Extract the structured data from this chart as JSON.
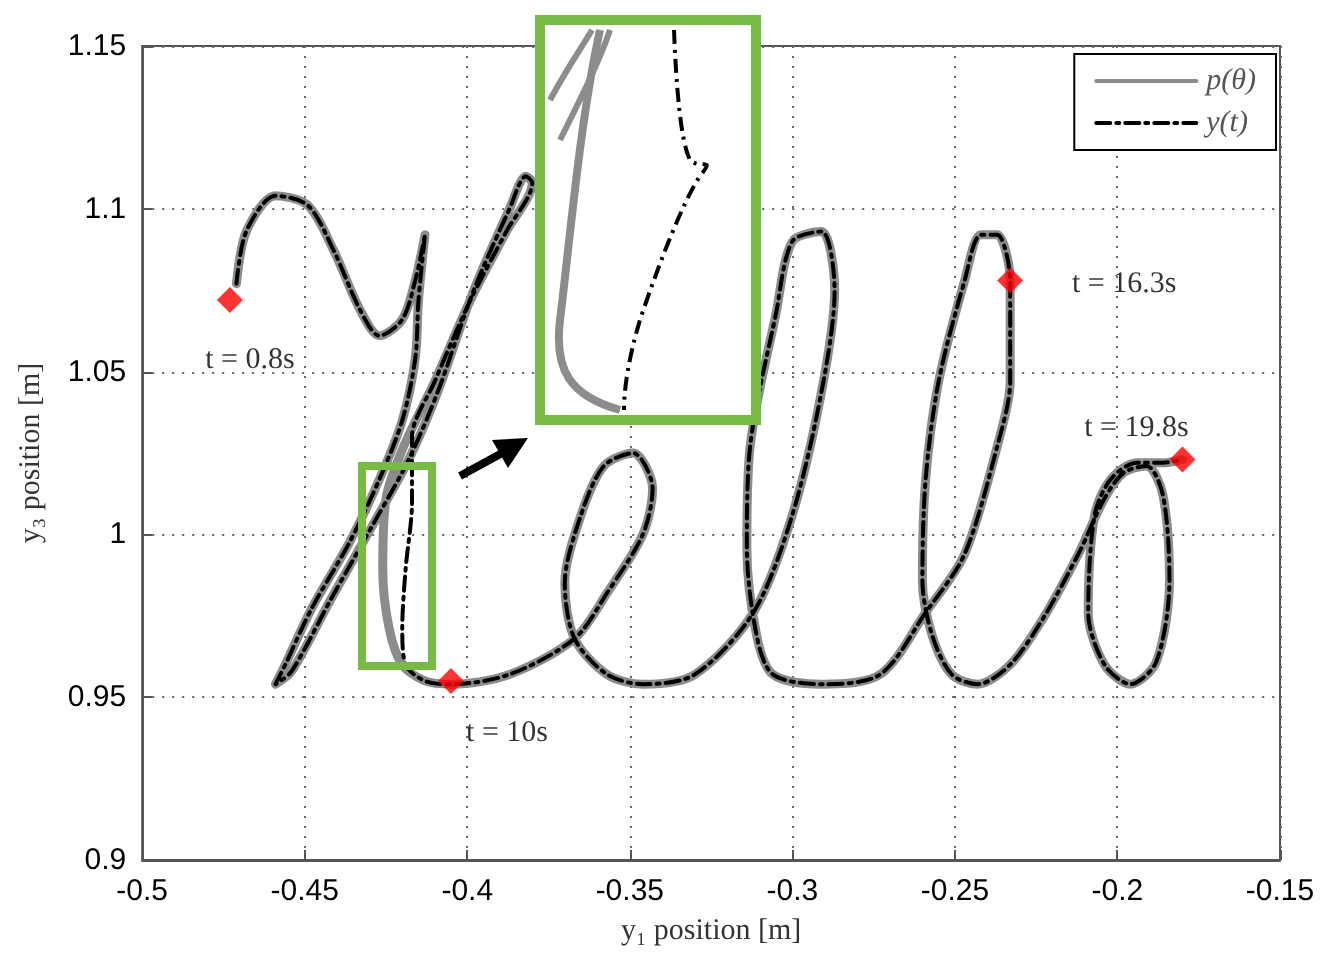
{
  "chart_data": {
    "type": "line",
    "xlabel": "y₁ position [m]",
    "ylabel": "y₃ position [m]",
    "xlim": [
      -0.5,
      -0.15
    ],
    "xticks": [
      -0.5,
      -0.45,
      -0.4,
      -0.35,
      -0.3,
      -0.25,
      -0.2,
      -0.15
    ],
    "ylim": [
      0.9,
      1.15
    ],
    "yticks": [
      0.9,
      0.95,
      1,
      1.05,
      1.1,
      1.15
    ],
    "grid": true,
    "legend": "top right",
    "marker": "none",
    "series": [
      {
        "name": "p(θ)",
        "color": "#8c8c8c",
        "line_style": "solid",
        "x": [
          -0.471,
          -0.468,
          -0.459,
          -0.449,
          -0.441,
          -0.433,
          -0.427,
          -0.42,
          -0.416,
          -0.413,
          -0.415,
          -0.416,
          -0.42,
          -0.427,
          -0.436,
          -0.448,
          -0.456,
          -0.459,
          -0.454,
          -0.442,
          -0.429,
          -0.418,
          -0.409,
          -0.398,
          -0.387,
          -0.382,
          -0.38,
          -0.388,
          -0.399,
          -0.41,
          -0.42,
          -0.425,
          -0.426,
          -0.424,
          -0.42,
          -0.413,
          -0.405,
          -0.387,
          -0.367,
          -0.357,
          -0.346,
          -0.343,
          -0.349,
          -0.358,
          -0.365,
          -0.37,
          -0.367,
          -0.357,
          -0.346,
          -0.33,
          -0.312,
          -0.3,
          -0.291,
          -0.287,
          -0.291,
          -0.3,
          -0.305,
          -0.313,
          -0.314,
          -0.311,
          -0.306,
          -0.291,
          -0.273,
          -0.259,
          -0.247,
          -0.237,
          -0.233,
          -0.233,
          -0.237,
          -0.242,
          -0.247,
          -0.255,
          -0.259,
          -0.26,
          -0.257,
          -0.251,
          -0.243,
          -0.233,
          -0.223,
          -0.212,
          -0.204,
          -0.198,
          -0.191,
          -0.186,
          -0.184,
          -0.188,
          -0.196,
          -0.204,
          -0.209,
          -0.207,
          -0.202,
          -0.194,
          -0.186,
          -0.18
        ],
        "values": [
          1.077,
          1.093,
          1.104,
          1.101,
          1.087,
          1.069,
          1.061,
          1.066,
          1.078,
          1.092,
          1.072,
          1.054,
          1.035,
          1.017,
          0.998,
          0.977,
          0.96,
          0.954,
          0.958,
          0.98,
          1.003,
          1.023,
          1.044,
          1.075,
          1.1,
          1.11,
          1.108,
          1.093,
          1.072,
          1.047,
          1.026,
          1.011,
          0.989,
          0.971,
          0.96,
          0.955,
          0.954,
          0.957,
          0.968,
          0.982,
          1.0,
          1.014,
          1.025,
          1.021,
          1.006,
          0.985,
          0.968,
          0.957,
          0.954,
          0.957,
          0.976,
          1.006,
          1.044,
          1.075,
          1.093,
          1.09,
          1.068,
          1.027,
          0.996,
          0.969,
          0.957,
          0.954,
          0.957,
          0.976,
          0.994,
          1.027,
          1.047,
          1.078,
          1.092,
          1.092,
          1.078,
          1.047,
          1.017,
          0.986,
          0.969,
          0.957,
          0.954,
          0.96,
          0.974,
          0.994,
          1.011,
          1.019,
          1.021,
          1.012,
          0.986,
          0.961,
          0.954,
          0.96,
          0.976,
          1.006,
          1.017,
          1.022,
          1.022,
          1.023
        ]
      },
      {
        "name": "y(t)",
        "color": "#000000",
        "line_style": "dashed",
        "x": [
          -0.471,
          -0.468,
          -0.459,
          -0.449,
          -0.441,
          -0.433,
          -0.427,
          -0.42,
          -0.416,
          -0.413,
          -0.415,
          -0.416,
          -0.42,
          -0.427,
          -0.436,
          -0.448,
          -0.456,
          -0.459,
          -0.454,
          -0.442,
          -0.429,
          -0.418,
          -0.409,
          -0.398,
          -0.387,
          -0.382,
          -0.38,
          -0.388,
          -0.399,
          -0.41,
          -0.417,
          -0.417,
          -0.419,
          -0.42,
          -0.419,
          -0.413,
          -0.405,
          -0.387,
          -0.367,
          -0.357,
          -0.346,
          -0.343,
          -0.349,
          -0.358,
          -0.365,
          -0.37,
          -0.367,
          -0.357,
          -0.346,
          -0.33,
          -0.312,
          -0.3,
          -0.291,
          -0.287,
          -0.291,
          -0.3,
          -0.305,
          -0.313,
          -0.314,
          -0.311,
          -0.306,
          -0.291,
          -0.273,
          -0.259,
          -0.247,
          -0.237,
          -0.233,
          -0.233,
          -0.237,
          -0.242,
          -0.247,
          -0.255,
          -0.259,
          -0.26,
          -0.257,
          -0.251,
          -0.243,
          -0.233,
          -0.223,
          -0.212,
          -0.204,
          -0.198,
          -0.191,
          -0.186,
          -0.184,
          -0.188,
          -0.196,
          -0.204,
          -0.209,
          -0.207,
          -0.202,
          -0.194,
          -0.186,
          -0.18
        ],
        "values": [
          1.077,
          1.093,
          1.104,
          1.101,
          1.087,
          1.069,
          1.061,
          1.066,
          1.078,
          1.092,
          1.072,
          1.054,
          1.035,
          1.017,
          0.998,
          0.977,
          0.96,
          0.954,
          0.958,
          0.98,
          1.003,
          1.023,
          1.044,
          1.075,
          1.1,
          1.11,
          1.108,
          1.093,
          1.072,
          1.047,
          1.03,
          1.01,
          0.989,
          0.971,
          0.96,
          0.955,
          0.954,
          0.957,
          0.968,
          0.982,
          1.0,
          1.014,
          1.025,
          1.021,
          1.006,
          0.985,
          0.968,
          0.957,
          0.954,
          0.957,
          0.976,
          1.006,
          1.044,
          1.075,
          1.093,
          1.09,
          1.068,
          1.027,
          0.996,
          0.969,
          0.957,
          0.954,
          0.957,
          0.976,
          0.994,
          1.027,
          1.047,
          1.078,
          1.092,
          1.092,
          1.078,
          1.047,
          1.017,
          0.986,
          0.969,
          0.957,
          0.954,
          0.96,
          0.974,
          0.994,
          1.011,
          1.019,
          1.021,
          1.012,
          0.986,
          0.961,
          0.954,
          0.96,
          0.976,
          1.006,
          1.017,
          1.022,
          1.022,
          1.023
        ]
      },
      {
        "type": "scatter",
        "color": "#ff0000",
        "marker": "diamond",
        "x": [
          -0.473,
          -0.405,
          -0.233,
          -0.18
        ],
        "values": [
          1.072,
          0.955,
          1.078,
          1.023
        ]
      }
    ],
    "annotations": [
      {
        "text": "t = 0.8s",
        "x": -0.473,
        "y": 1.072
      },
      {
        "text": "t = 10s",
        "x": -0.405,
        "y": 0.955
      },
      {
        "text": "t = 16.3s",
        "x": -0.233,
        "y": 1.078
      },
      {
        "text": "t = 19.8s",
        "x": -0.18,
        "y": 1.023
      }
    ]
  }
}
